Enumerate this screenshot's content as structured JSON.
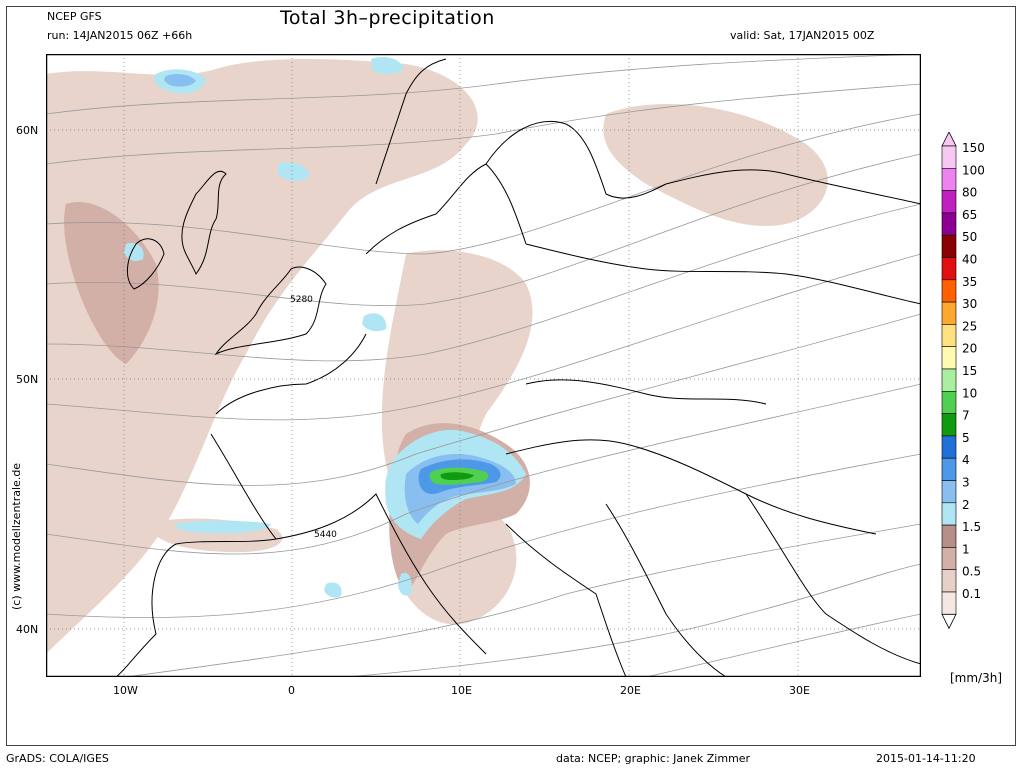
{
  "header": {
    "model": "NCEP GFS",
    "run": "run: 14JAN2015 06Z +66h",
    "title": "Total 3h–precipitation",
    "valid": "valid: Sat, 17JAN2015 00Z"
  },
  "axes": {
    "lat_labels": [
      "60N",
      "50N",
      "40N"
    ],
    "lon_labels": [
      "10W",
      "0",
      "10E",
      "20E",
      "30E"
    ]
  },
  "contours": {
    "labels": [
      "5280",
      "5440"
    ]
  },
  "legend": {
    "units": "[mm/3h]",
    "levels": [
      {
        "label": "150",
        "color": "#f7c8f2"
      },
      {
        "label": "100",
        "color": "#ee82ee"
      },
      {
        "label": "80",
        "color": "#c020c0"
      },
      {
        "label": "65",
        "color": "#8b0090"
      },
      {
        "label": "50",
        "color": "#8b0000"
      },
      {
        "label": "40",
        "color": "#e01010"
      },
      {
        "label": "35",
        "color": "#ff6000"
      },
      {
        "label": "30",
        "color": "#ffa830"
      },
      {
        "label": "25",
        "color": "#ffe080"
      },
      {
        "label": "20",
        "color": "#fffab0"
      },
      {
        "label": "15",
        "color": "#a8f0a0"
      },
      {
        "label": "10",
        "color": "#50d050"
      },
      {
        "label": "7",
        "color": "#109a10"
      },
      {
        "label": "5",
        "color": "#2070d8"
      },
      {
        "label": "4",
        "color": "#4e98e8"
      },
      {
        "label": "3",
        "color": "#88bff0"
      },
      {
        "label": "2",
        "color": "#b0e6f4"
      },
      {
        "label": "1.5",
        "color": "#b69088"
      },
      {
        "label": "1",
        "color": "#d2b0a8"
      },
      {
        "label": "0.5",
        "color": "#e6d0c8"
      },
      {
        "label": "0.1",
        "color": "#f4e8e2"
      }
    ]
  },
  "footer": {
    "left": "GrADS: COLA/IGES",
    "data": "data: NCEP; graphic: Janek Zimmer",
    "timestamp": "2015-01-14-11:20"
  },
  "credit": "(c) www.modellzentrale.de"
}
